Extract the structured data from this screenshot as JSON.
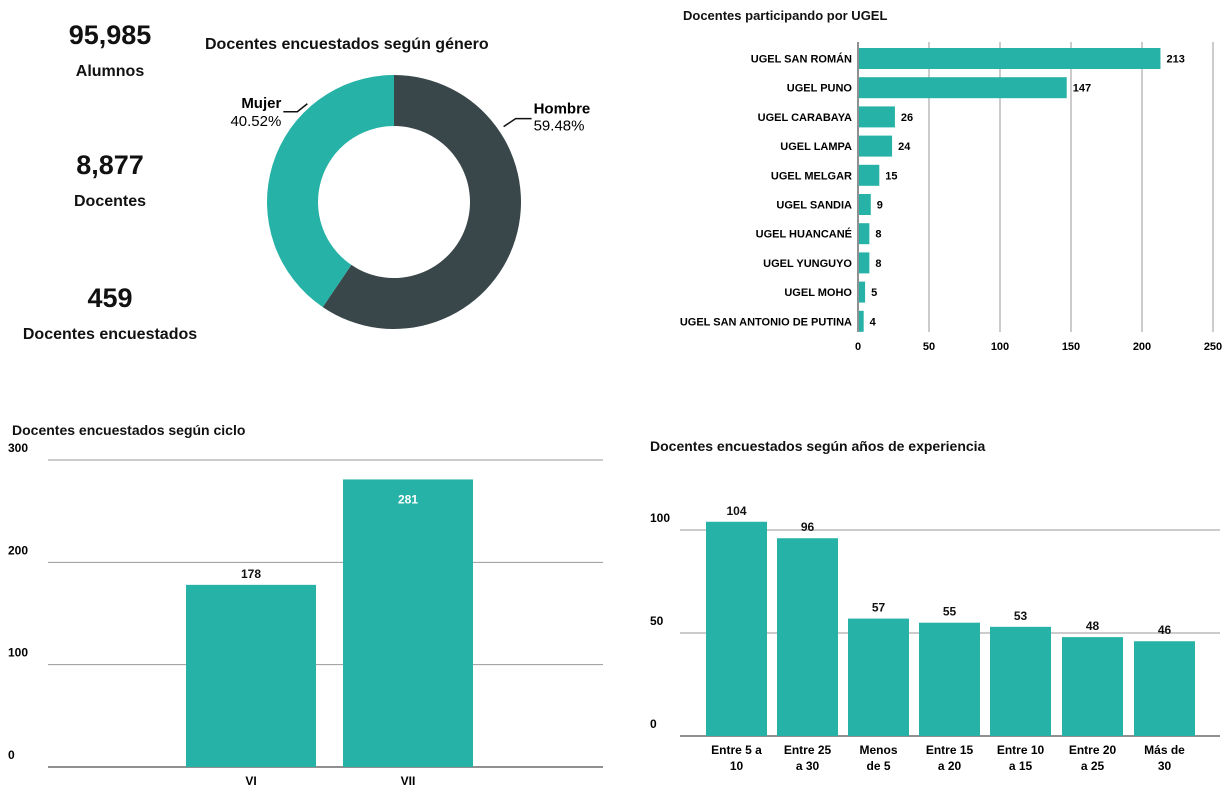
{
  "kpis": [
    {
      "value": "95,985",
      "label": "Alumnos"
    },
    {
      "value": "8,877",
      "label": "Docentes"
    },
    {
      "value": "459",
      "label": "Docentes encuestados"
    }
  ],
  "colors": {
    "teal": "#26b2a6",
    "dark": "#3a474a",
    "grid": "#9a9a9a"
  },
  "chart_data": [
    {
      "type": "pie",
      "title": "Docentes encuestados según género",
      "labels": [
        "Hombre",
        "Mujer"
      ],
      "values": [
        59.48,
        40.52
      ],
      "display": [
        "59.48%",
        "40.52%"
      ],
      "colors": [
        "#3a474a",
        "#26b2a6"
      ]
    },
    {
      "type": "bar",
      "orientation": "horizontal",
      "title": "Docentes participando por UGEL",
      "categories": [
        "UGEL SAN ROMÁN",
        "UGEL PUNO",
        "UGEL CARABAYA",
        "UGEL LAMPA",
        "UGEL MELGAR",
        "UGEL SANDIA",
        "UGEL HUANCANÉ",
        "UGEL YUNGUYO",
        "UGEL MOHO",
        "UGEL SAN ANTONIO DE PUTINA"
      ],
      "values": [
        213,
        147,
        26,
        24,
        15,
        9,
        8,
        8,
        5,
        4
      ],
      "xlim": [
        0,
        250
      ],
      "ticks": [
        0,
        50,
        100,
        150,
        200,
        250
      ],
      "grid": true
    },
    {
      "type": "bar",
      "title": "Docentes encuestados según ciclo",
      "categories": [
        "VI",
        "VII"
      ],
      "values": [
        178,
        281
      ],
      "ylim": [
        0,
        300
      ],
      "ticks": [
        0,
        100,
        200,
        300
      ],
      "grid": true
    },
    {
      "type": "bar",
      "title": "Docentes encuestados según años de experiencia",
      "categories": [
        [
          "Entre 5 a",
          "10"
        ],
        [
          "Entre 25",
          "a 30"
        ],
        [
          "Menos",
          "de 5"
        ],
        [
          "Entre 15",
          "a 20"
        ],
        [
          "Entre 10",
          "a 15"
        ],
        [
          "Entre 20",
          "a 25"
        ],
        [
          "Más de",
          "30"
        ]
      ],
      "values": [
        104,
        96,
        57,
        55,
        53,
        48,
        46
      ],
      "ylim": [
        0,
        100
      ],
      "ticks": [
        0,
        50,
        100
      ],
      "grid": true
    }
  ]
}
